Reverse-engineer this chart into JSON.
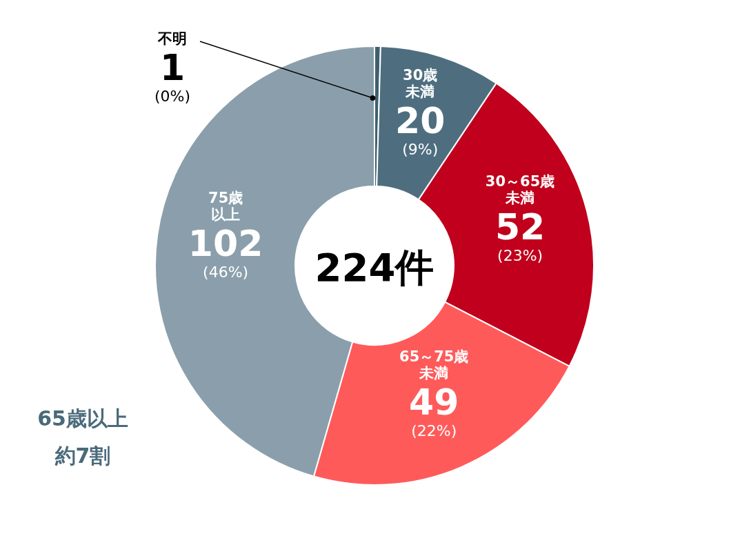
{
  "chart_data": {
    "type": "donut",
    "categories": [
      "不明",
      "30歳未満",
      "30～65歳未満",
      "65～75歳未満",
      "75歳以上"
    ],
    "values": [
      1,
      20,
      52,
      49,
      102
    ],
    "colors": [
      "#3f5f70",
      "#4e6e80",
      "#c0001c",
      "#ff5a5a",
      "#8a9fab"
    ],
    "data_labels": true,
    "annotations": [
      "224件",
      "65歳以上約7割",
      "(0%)",
      "(9%)",
      "(23%)",
      "(22%)",
      "(46%)"
    ]
  }
}
